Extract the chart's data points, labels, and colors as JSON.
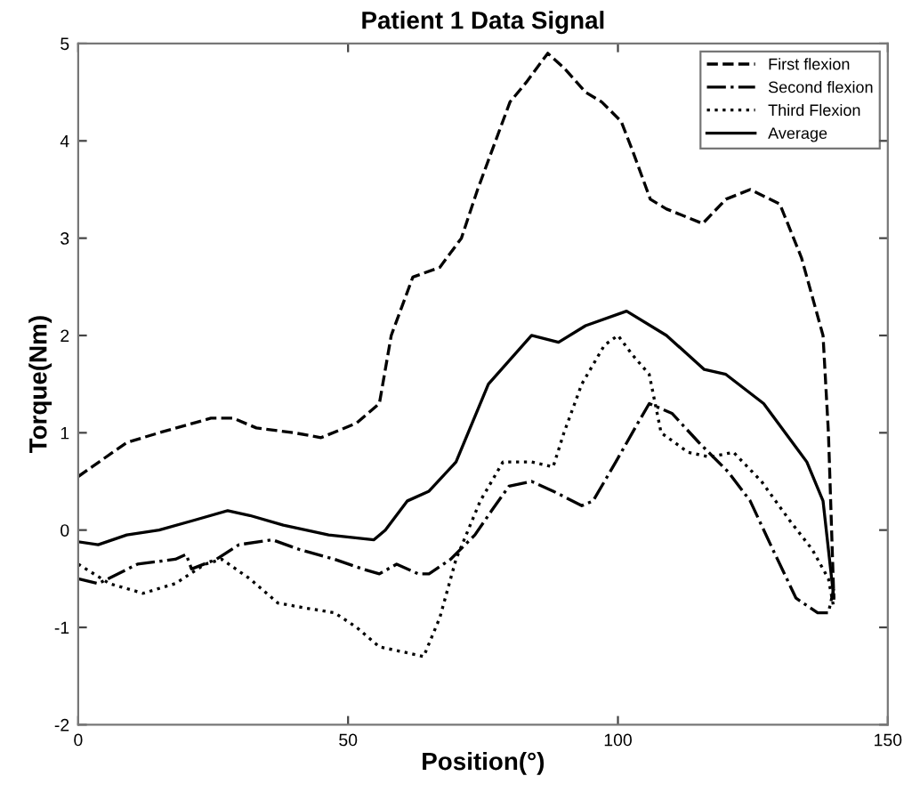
{
  "chart_data": {
    "type": "line",
    "title": "Patient 1 Data Signal",
    "xlabel": "Position(°)",
    "ylabel": "Torque(Nm)",
    "xlim": [
      0,
      150
    ],
    "xticks": [
      0,
      50,
      100,
      150
    ],
    "ylim": [
      -2,
      5
    ],
    "yticks": [
      -2,
      -1,
      0,
      1,
      2,
      3,
      4,
      5
    ],
    "grid": false,
    "legend": "top right",
    "marker": "none",
    "series": [
      {
        "name": "First flexion",
        "color": "#000000",
        "line_style": "dashed",
        "x": [
          0,
          9,
          15,
          24.6,
          28.7,
          33,
          40,
          45,
          51.6,
          55.8,
          58,
          62,
          67,
          71,
          74,
          80,
          83,
          87,
          90,
          94,
          97,
          100.6,
          102.7,
          106,
          109,
          115.7,
          120,
          124.5,
          130,
          134,
          138,
          139,
          140
        ],
        "values": [
          0.55,
          0.9,
          1.0,
          1.15,
          1.15,
          1.05,
          1.0,
          0.95,
          1.1,
          1.3,
          2.0,
          2.6,
          2.7,
          3.0,
          3.5,
          4.4,
          4.6,
          4.9,
          4.75,
          4.5,
          4.4,
          4.2,
          3.9,
          3.4,
          3.3,
          3.15,
          3.4,
          3.5,
          3.35,
          2.8,
          2.0,
          1.0,
          -0.7
        ]
      },
      {
        "name": "Second flexion",
        "color": "#000000",
        "line_style": "dashdot",
        "x": [
          0,
          3.7,
          11,
          18,
          20,
          21,
          25.6,
          29.8,
          36,
          41,
          47.5,
          52.7,
          55.8,
          59,
          63,
          65,
          69,
          73.5,
          76.6,
          79.8,
          84,
          88,
          93.3,
          95.4,
          99.6,
          103.7,
          105.8,
          110,
          115,
          120.4,
          124.5,
          128.7,
          133,
          137,
          139,
          140
        ],
        "values": [
          -0.5,
          -0.55,
          -0.35,
          -0.3,
          -0.25,
          -0.4,
          -0.3,
          -0.15,
          -0.1,
          -0.2,
          -0.3,
          -0.4,
          -0.45,
          -0.35,
          -0.45,
          -0.45,
          -0.3,
          -0.05,
          0.2,
          0.45,
          0.5,
          0.4,
          0.25,
          0.3,
          0.7,
          1.1,
          1.3,
          1.2,
          0.9,
          0.6,
          0.3,
          -0.2,
          -0.7,
          -0.85,
          -0.85,
          -0.6
        ]
      },
      {
        "name": "Third Flexion",
        "color": "#000000",
        "line_style": "dotted",
        "x": [
          0,
          5.8,
          12,
          18,
          23.5,
          26.6,
          31.8,
          37,
          42,
          47.5,
          51.6,
          55.8,
          60,
          64,
          67,
          70,
          74.5,
          78.7,
          84,
          88,
          90,
          93.3,
          97.5,
          100,
          102.7,
          105.8,
          108,
          113,
          117,
          121.4,
          126.6,
          131.8,
          136,
          139,
          140
        ],
        "values": [
          -0.35,
          -0.55,
          -0.65,
          -0.55,
          -0.35,
          -0.3,
          -0.5,
          -0.75,
          -0.8,
          -0.85,
          -1.0,
          -1.2,
          -1.25,
          -1.3,
          -0.9,
          -0.3,
          0.3,
          0.7,
          0.7,
          0.65,
          1.0,
          1.5,
          1.9,
          2.0,
          1.8,
          1.6,
          1.0,
          0.8,
          0.75,
          0.8,
          0.5,
          0.1,
          -0.2,
          -0.5,
          -0.8
        ]
      },
      {
        "name": "Average",
        "color": "#000000",
        "line_style": "solid",
        "x": [
          0,
          3.7,
          9,
          15,
          21.4,
          27.7,
          31.8,
          38,
          46.4,
          54.8,
          56.9,
          61,
          65,
          70,
          76,
          84,
          89,
          94,
          101.6,
          109,
          116,
          120,
          127,
          135,
          138,
          140
        ],
        "values": [
          -0.12,
          -0.15,
          -0.05,
          0.0,
          0.1,
          0.2,
          0.15,
          0.05,
          -0.05,
          -0.1,
          0.0,
          0.3,
          0.4,
          0.7,
          1.5,
          2.0,
          1.93,
          2.1,
          2.25,
          2.0,
          1.65,
          1.6,
          1.3,
          0.7,
          0.3,
          -0.7
        ]
      }
    ]
  }
}
